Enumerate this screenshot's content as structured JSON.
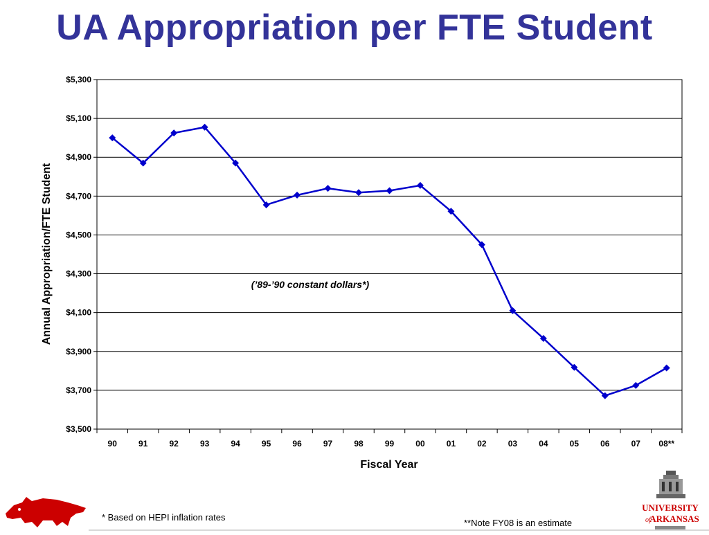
{
  "title": "UA Appropriation per FTE Student",
  "footnotes": {
    "left": "* Based on HEPI inflation rates",
    "right": "**Note FY08 is an estimate"
  },
  "logos": {
    "left": "razorback-hog-icon",
    "right_top": "UNIVERSITY",
    "right_of": "of",
    "right_bottom": "ARKANSAS"
  },
  "colors": {
    "title": "#333399",
    "series": "#0000CC",
    "logo_red": "#CC0000"
  },
  "chart_data": {
    "type": "line",
    "xlabel": "Fiscal Year",
    "ylabel": "Annual Appropriation/FTE Student",
    "annotation": "(’89-’90 constant dollars*)",
    "categories": [
      "90",
      "91",
      "92",
      "93",
      "94",
      "95",
      "96",
      "97",
      "98",
      "99",
      "00",
      "01",
      "02",
      "03",
      "04",
      "05",
      "06",
      "07",
      "08**"
    ],
    "series": [
      {
        "values": [
          5000,
          4870,
          5025,
          5055,
          4870,
          4655,
          4705,
          4740,
          4718,
          4728,
          4755,
          4622,
          4450,
          4110,
          3967,
          3818,
          3672,
          3725,
          3815
        ],
        "marker": "diamond"
      }
    ],
    "ylim": [
      3500,
      5300
    ],
    "yticks": [
      3500,
      3700,
      3900,
      4100,
      4300,
      4500,
      4700,
      4900,
      5100,
      5300
    ],
    "ytick_labels": [
      "$3,500",
      "$3,700",
      "$3,900",
      "$4,100",
      "$4,300",
      "$4,500",
      "$4,700",
      "$4,900",
      "$5,100",
      "$5,300"
    ],
    "grid": true
  }
}
